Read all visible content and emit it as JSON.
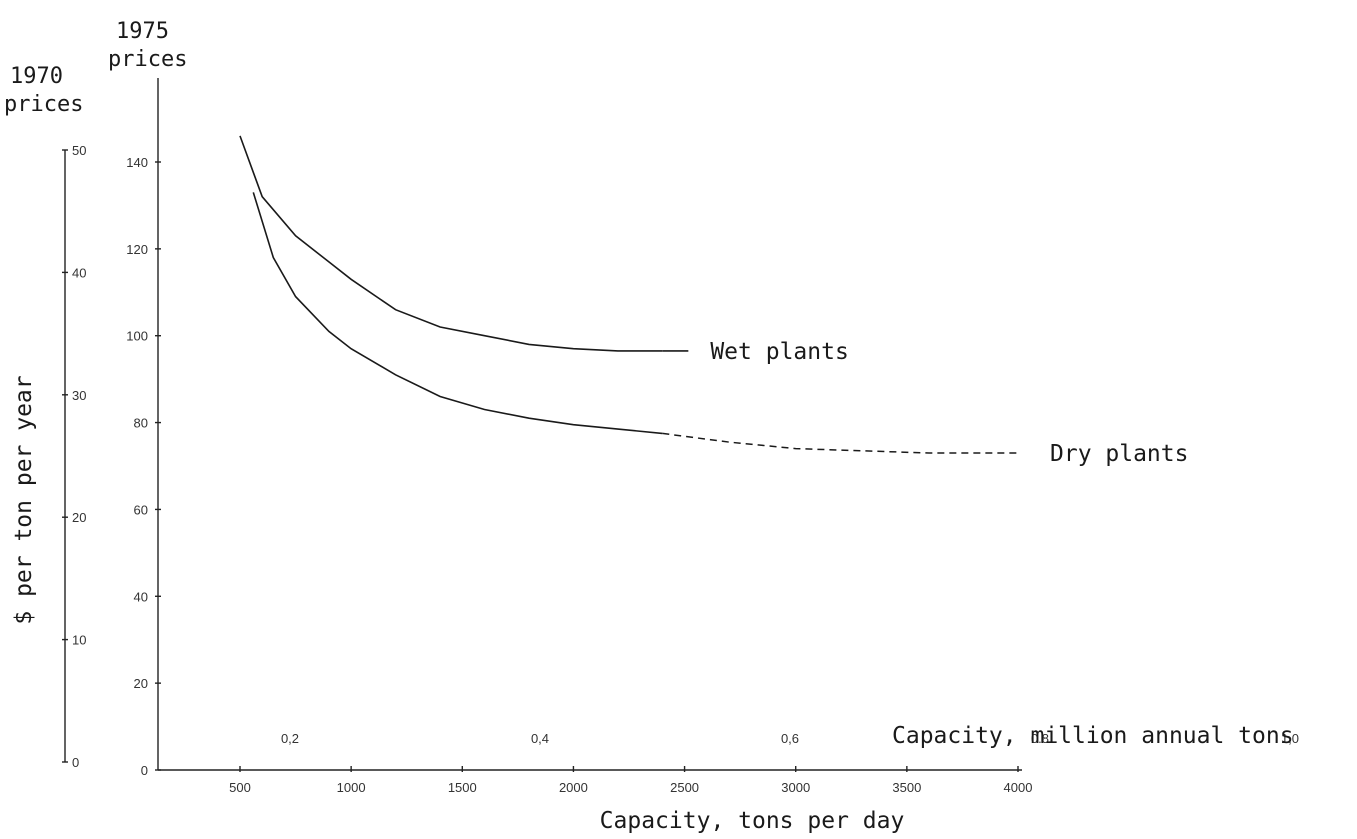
{
  "chart_data": {
    "type": "line",
    "xlabel": "Capacity, tons per day",
    "xlabel_secondary": "Capacity, million annual tons",
    "ylabel": "$ per ton per year",
    "y_left_header": [
      "1970",
      "prices"
    ],
    "y_right_header": [
      "1975",
      "prices"
    ],
    "x_ticks": [
      {
        "value": 500,
        "label": "500"
      },
      {
        "value": 1000,
        "label": "1000"
      },
      {
        "value": 1500,
        "label": "1500"
      },
      {
        "value": 2000,
        "label": "2000"
      },
      {
        "value": 2500,
        "label": "2500"
      },
      {
        "value": 3000,
        "label": "3000"
      },
      {
        "value": 3500,
        "label": "3500"
      },
      {
        "value": 4000,
        "label": "4000"
      }
    ],
    "x_secondary_ticks": [
      {
        "value": 0.2,
        "label": "0,2"
      },
      {
        "value": 0.4,
        "label": "0,4"
      },
      {
        "value": 0.6,
        "label": "0,6"
      },
      {
        "value": 0.8,
        "label": "0.8"
      },
      {
        "value": 1.0,
        "label": "1,0"
      }
    ],
    "y_1975_ticks": [
      {
        "value": 0,
        "label": "0"
      },
      {
        "value": 20,
        "label": "20"
      },
      {
        "value": 40,
        "label": "40"
      },
      {
        "value": 60,
        "label": "60"
      },
      {
        "value": 80,
        "label": "80"
      },
      {
        "value": 100,
        "label": "100"
      },
      {
        "value": 120,
        "label": "120"
      },
      {
        "value": 140,
        "label": "140"
      }
    ],
    "y_1970_ticks": [
      {
        "value": 0,
        "label": "0"
      },
      {
        "value": 10,
        "label": "10"
      },
      {
        "value": 20,
        "label": "20"
      },
      {
        "value": 30,
        "label": "30"
      },
      {
        "value": 40,
        "label": "40"
      },
      {
        "value": 50,
        "label": "50"
      }
    ],
    "xlim": [
      0,
      4000
    ],
    "ylim_1975": [
      0,
      140
    ],
    "ylim_1970": [
      0,
      50
    ],
    "series": [
      {
        "name": "Wet plants",
        "x": [
          500,
          600,
          750,
          900,
          1000,
          1200,
          1400,
          1600,
          1800,
          2000,
          2200,
          2400
        ],
        "y": [
          146,
          132,
          123,
          117,
          113,
          106,
          102,
          100,
          98,
          97,
          96.5,
          96.5
        ]
      },
      {
        "name": "Dry plants",
        "x": [
          560,
          650,
          750,
          900,
          1000,
          1200,
          1400,
          1600,
          1800,
          2000,
          2200,
          2400
        ],
        "y": [
          133,
          118,
          109,
          101,
          97,
          91,
          86,
          83,
          81,
          79.5,
          78.5,
          77.5
        ],
        "dashed_x": [
          2400,
          2700,
          3000,
          3300,
          3600,
          4000
        ],
        "dashed_y": [
          77.5,
          75.5,
          74,
          73.5,
          73,
          73
        ]
      }
    ]
  }
}
